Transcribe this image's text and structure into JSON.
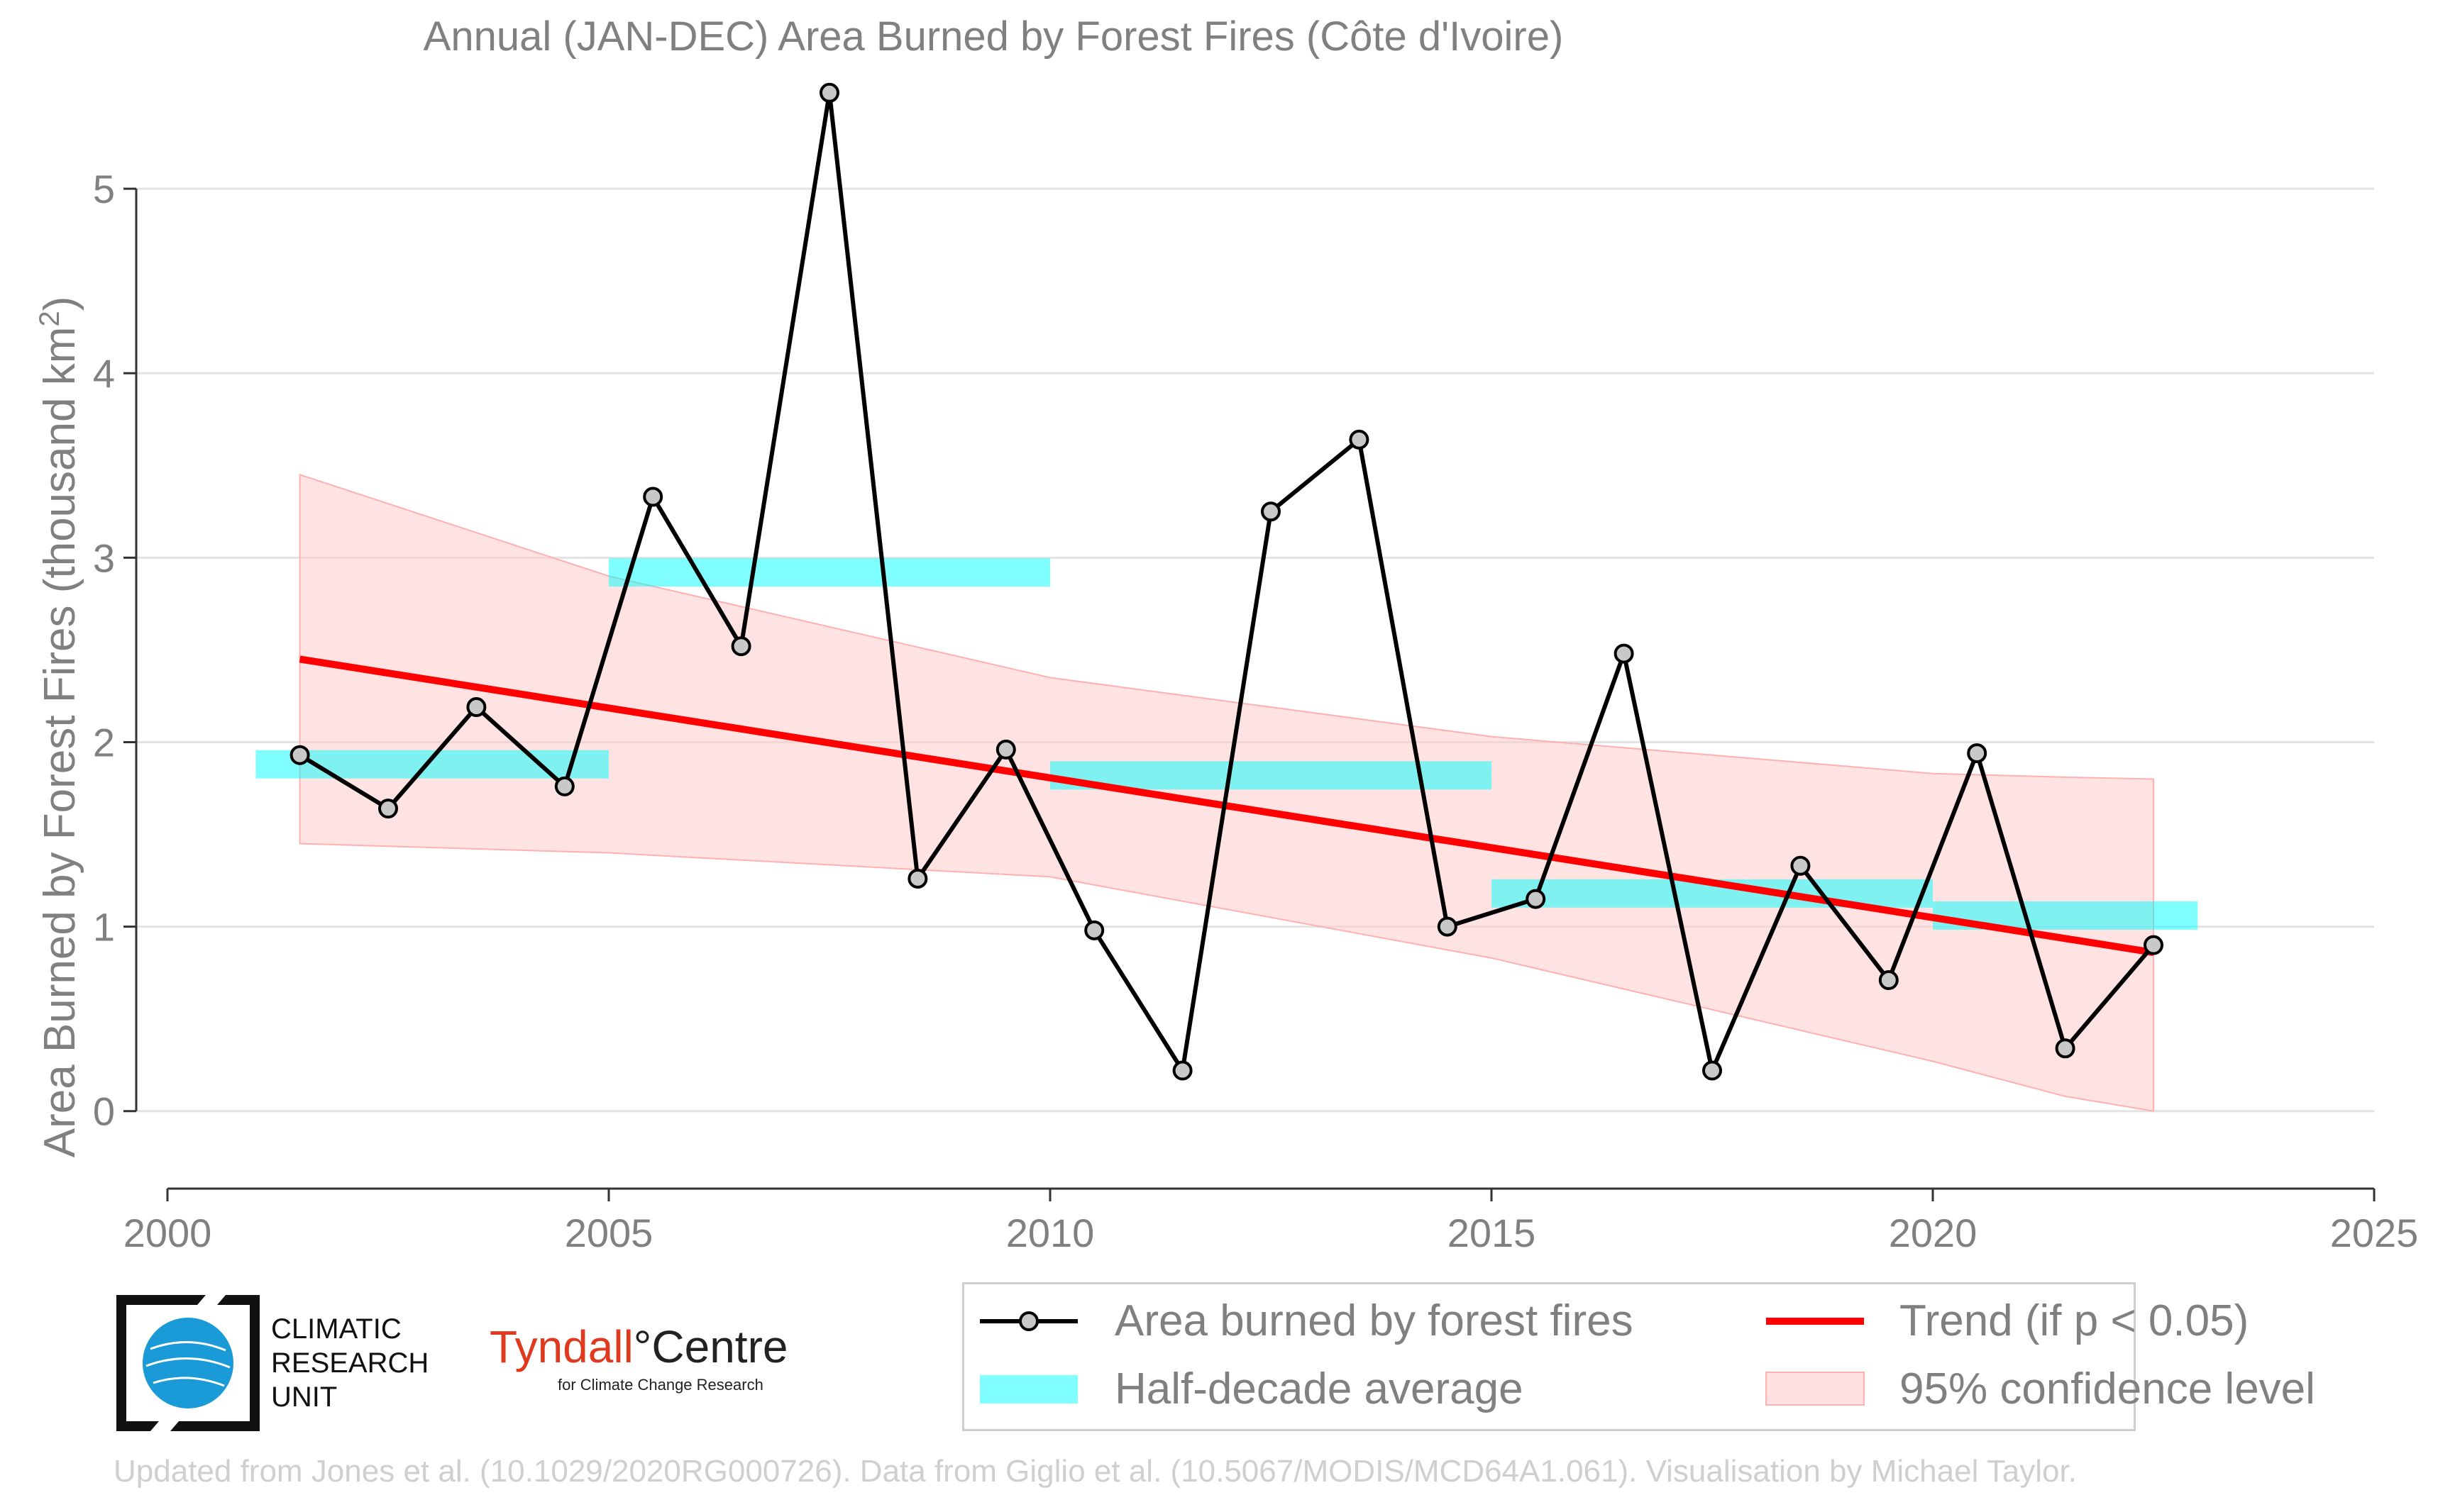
{
  "chart_data": {
    "type": "line",
    "title": "Annual (JAN-DEC) Area Burned by Forest Fires (Côte d'Ivoire)",
    "ylabel": "Area Burned by Forest Fires (thousand km²)",
    "xlabel": "",
    "xlim": [
      2000,
      2025
    ],
    "ylim": [
      -0.42,
      5.6
    ],
    "x_ticks": [
      2000,
      2005,
      2010,
      2015,
      2020,
      2025
    ],
    "y_ticks": [
      0,
      1,
      2,
      3,
      4,
      5
    ],
    "grid": "horizontal",
    "legend_position": "bottom-right",
    "series": [
      {
        "name": "Area burned by forest fires",
        "type": "line-markers",
        "color": "#000000",
        "x": [
          2001.5,
          2002.5,
          2003.5,
          2004.5,
          2005.5,
          2006.5,
          2007.5,
          2008.5,
          2009.5,
          2010.5,
          2011.5,
          2012.5,
          2013.5,
          2014.5,
          2015.5,
          2016.5,
          2017.5,
          2018.5,
          2019.5,
          2020.5,
          2021.5,
          2022.5
        ],
        "y": [
          1.93,
          1.64,
          2.19,
          1.76,
          3.33,
          2.52,
          5.52,
          1.26,
          1.96,
          0.98,
          0.22,
          3.25,
          3.64,
          1.0,
          1.15,
          2.48,
          0.22,
          1.33,
          0.71,
          1.94,
          0.34,
          0.9
        ]
      },
      {
        "name": "Half-decade average",
        "type": "step-bars",
        "color": "#00ffff",
        "segments": [
          {
            "x0": 2001,
            "x1": 2005,
            "y": 1.88
          },
          {
            "x0": 2005,
            "x1": 2010,
            "y": 2.92
          },
          {
            "x0": 2010,
            "x1": 2015,
            "y": 1.82
          },
          {
            "x0": 2015,
            "x1": 2020,
            "y": 1.18
          },
          {
            "x0": 2020,
            "x1": 2023,
            "y": 1.06
          }
        ]
      },
      {
        "name": "Trend (if p < 0.05)",
        "type": "line",
        "color": "#ff0000",
        "x": [
          2001.5,
          2022.5
        ],
        "y": [
          2.45,
          0.86
        ]
      },
      {
        "name": "95% confidence level",
        "type": "band",
        "color": "#ffcccc",
        "x": [
          2001.5,
          2005,
          2010,
          2015,
          2020,
          2021.5,
          2022.5
        ],
        "upper": [
          3.45,
          2.9,
          2.35,
          2.03,
          1.83,
          1.81,
          1.8
        ],
        "lower": [
          1.45,
          1.4,
          1.27,
          0.83,
          0.27,
          0.08,
          0.0
        ]
      }
    ]
  },
  "legend": {
    "line": "Area burned by forest fires",
    "trend": "Trend (if p < 0.05)",
    "half": "Half-decade average",
    "ci": "95% confidence level"
  },
  "logos": {
    "cru_line1": "CLIMATIC",
    "cru_line2": "RESEARCH",
    "cru_line3": "UNIT",
    "tyndall_part1": "Tyndall",
    "tyndall_part2": "°Centre",
    "tyndall_sub": "for Climate Change Research"
  },
  "footer": "Updated from Jones et al. (10.1029/2020RG000726). Data from Giglio et al. (10.5067/MODIS/MCD64A1.061). Visualisation by Michael Taylor."
}
